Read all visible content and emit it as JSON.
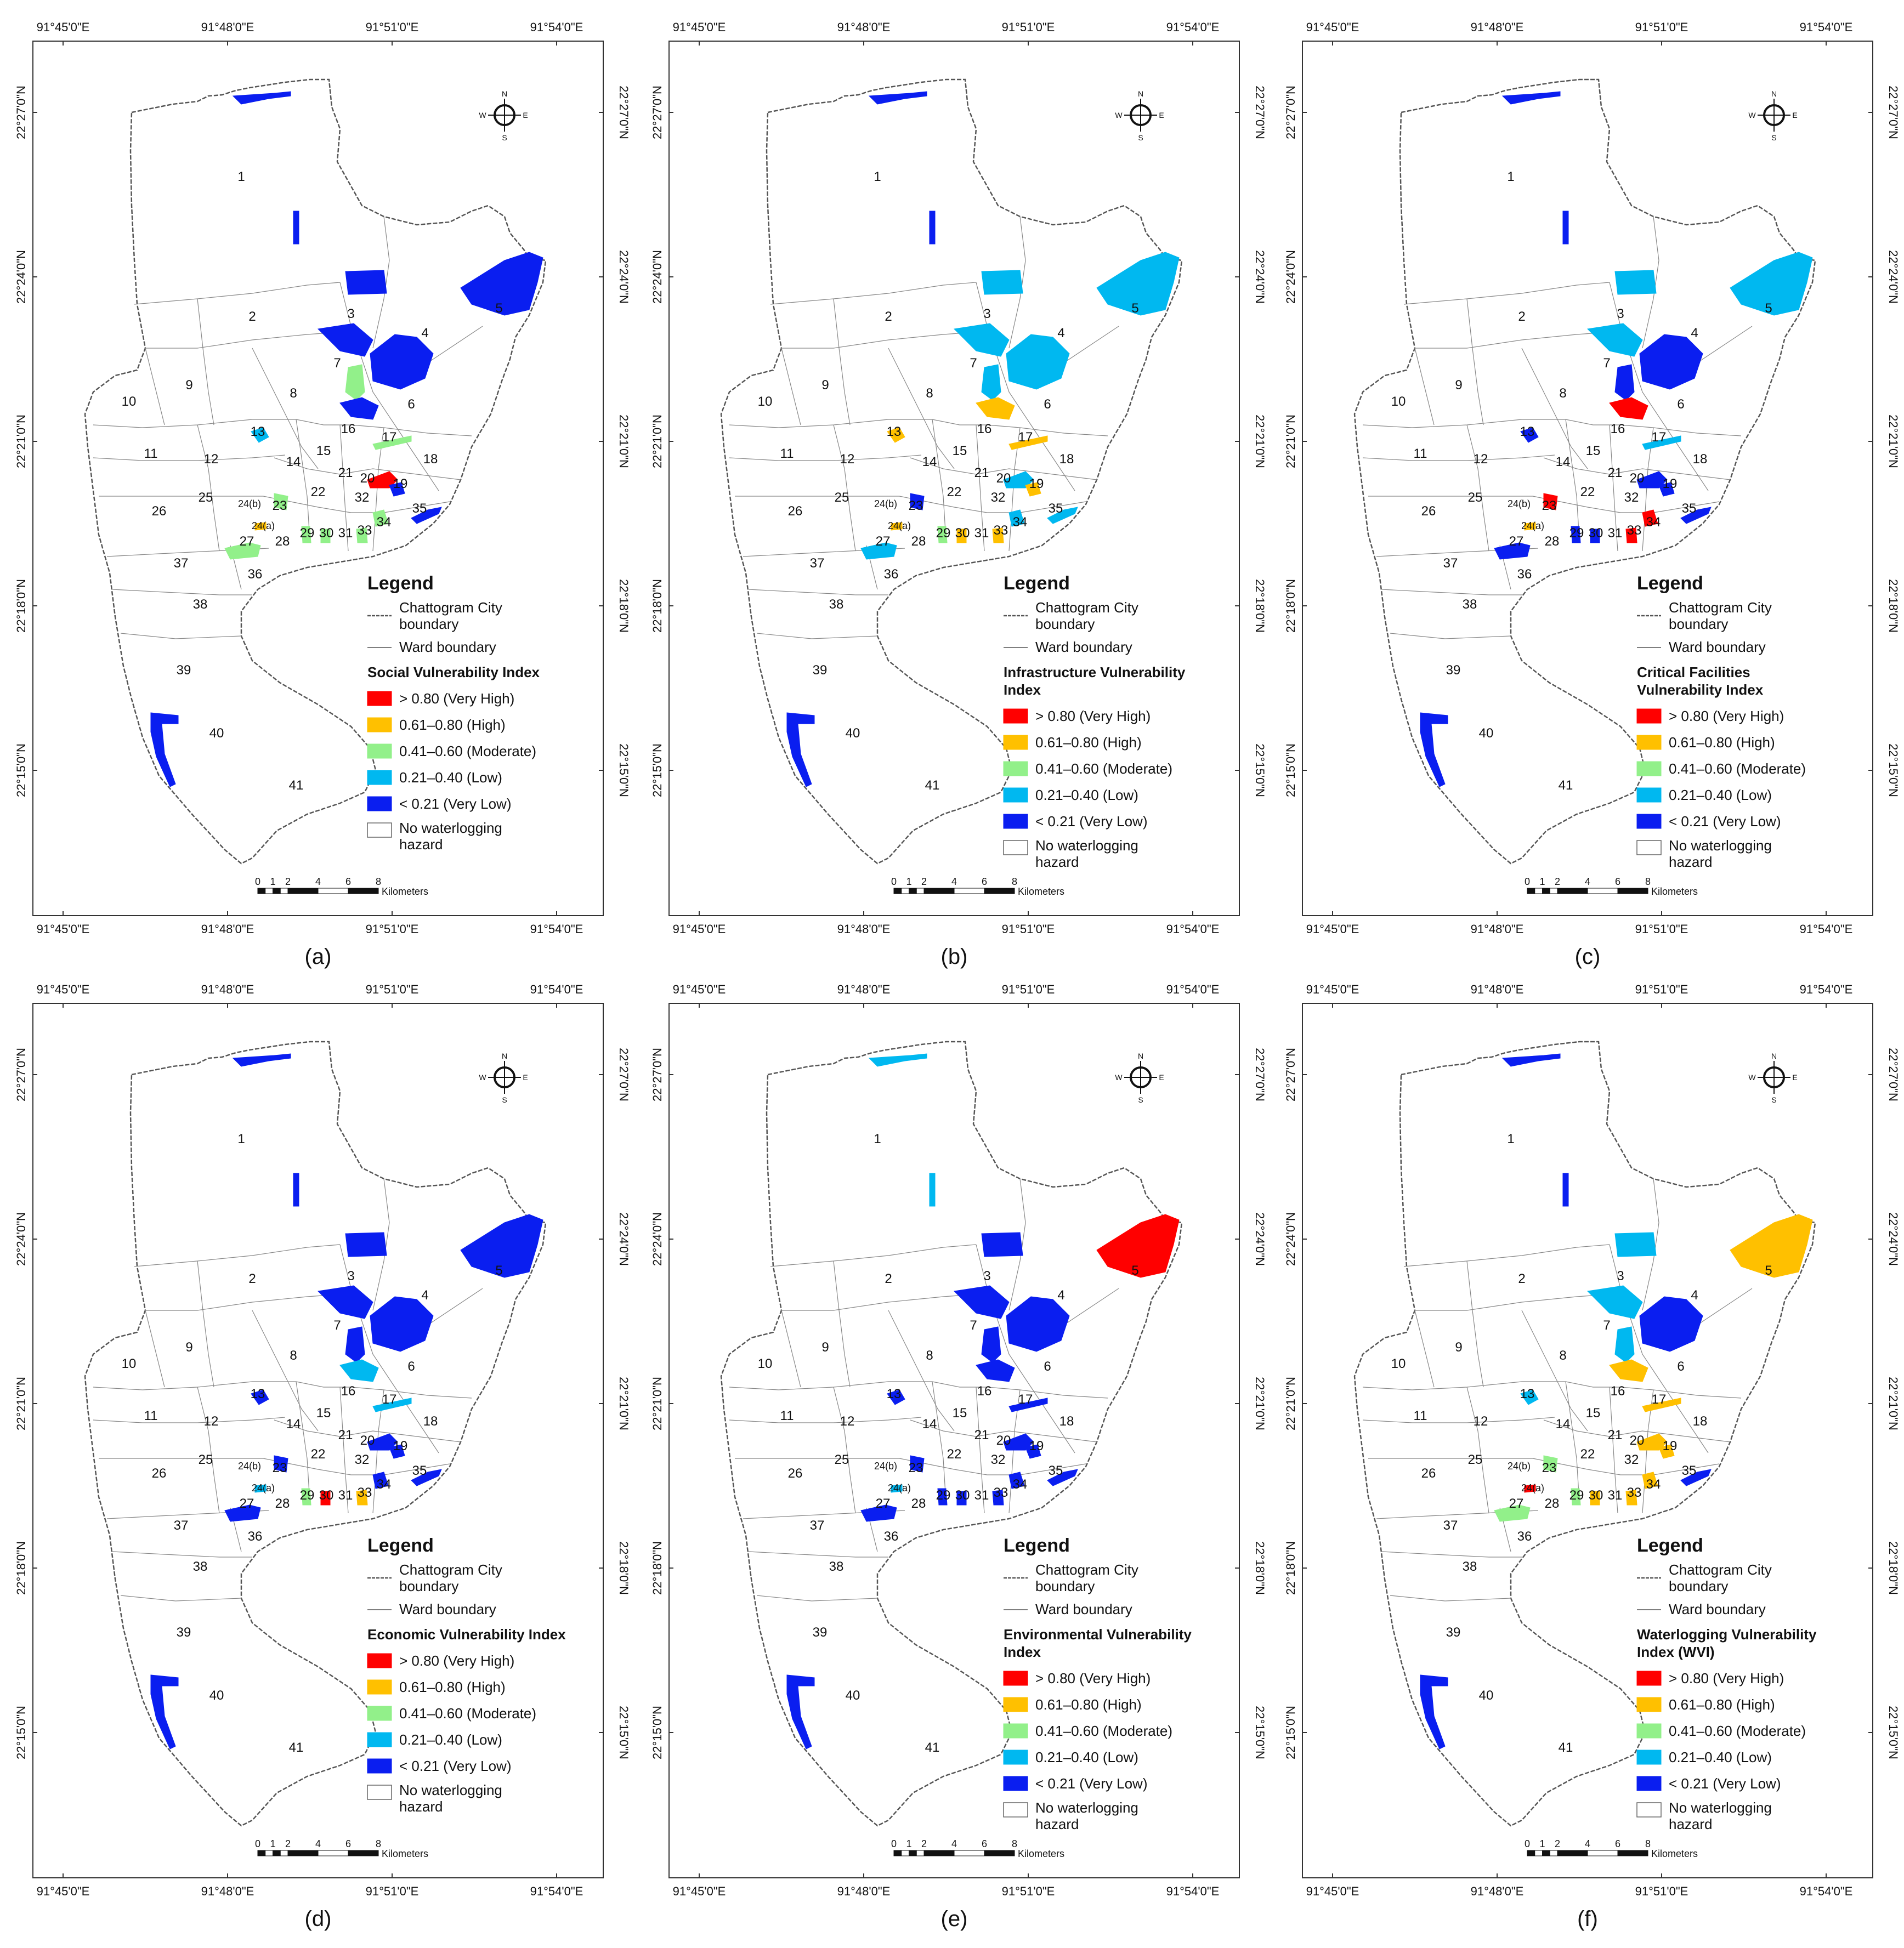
{
  "coordinates": {
    "top": [
      "91°45'0\"E",
      "91°48'0\"E",
      "91°51'0\"E",
      "91°54'0\"E"
    ],
    "bottom": [
      "91°45'0\"E",
      "91°48'0\"E",
      "91°51'0\"E",
      "91°54'0\"E"
    ],
    "left": [
      "22°27'0\"N",
      "22°24'0\"N",
      "22°21'0\"N",
      "22°18'0\"N",
      "22°15'0\"N"
    ],
    "right": [
      "22°27'0\"N",
      "22°24'0\"N",
      "22°21'0\"N",
      "22°18'0\"N",
      "22°15'0\"N"
    ]
  },
  "wards": [
    "1",
    "2",
    "3",
    "4",
    "5",
    "6",
    "7",
    "8",
    "9",
    "10",
    "11",
    "12",
    "13",
    "14",
    "15",
    "16",
    "17",
    "18",
    "19",
    "20",
    "21",
    "22",
    "23",
    "24(a)",
    "24(b)",
    "25",
    "26",
    "27",
    "28",
    "29",
    "30",
    "31",
    "32",
    "33",
    "34",
    "35",
    "36",
    "37",
    "38",
    "39",
    "40",
    "41"
  ],
  "legend": {
    "title": "Legend",
    "city_boundary": "Chattogram City boundary",
    "ward_boundary": "Ward boundary",
    "classes": [
      {
        "label": "> 0.80 (Very High)",
        "color": "#ff0000"
      },
      {
        "label": "0.61–0.80 (High)",
        "color": "#ffc000"
      },
      {
        "label": "0.41–0.60 (Moderate)",
        "color": "#92f08a"
      },
      {
        "label": "0.21–0.40 (Low)",
        "color": "#00b8f0"
      },
      {
        "label": "< 0.21 (Very Low)",
        "color": "#0a1ef0"
      }
    ],
    "no_hazard": "No waterlogging hazard"
  },
  "compass": {
    "n": "N",
    "s": "S",
    "e": "E",
    "w": "W"
  },
  "scale": {
    "ticks": [
      "0",
      "1",
      "2",
      "4",
      "6",
      "8"
    ],
    "unit": "Kilometers"
  },
  "panels": [
    {
      "label": "(a)",
      "index_title": "Social Vulnerability Index",
      "zones": {
        "z5": "#0a1ef0",
        "z3": "#0a1ef0",
        "z4": "#0a1ef0",
        "z3b": "#0a1ef0",
        "z7": "#92f08a",
        "z6": "#0a1ef0",
        "z13": "#00b8f0",
        "z17": "#92f08a",
        "z20": "#ff0000",
        "z19": "#0a1ef0",
        "z23": "#92f08a",
        "z24": "#ffc000",
        "z27": "#92f08a",
        "z29": "#92f08a",
        "z30": "#92f08a",
        "z33": "#92f08a",
        "z34": "#92f08a",
        "z35": "#0a1ef0",
        "z1a": "#0a1ef0",
        "z1b": "#0a1ef0",
        "z40": "#0a1ef0"
      }
    },
    {
      "label": "(b)",
      "index_title": "Infrastructure Vulnerability Index",
      "zones": {
        "z5": "#00b8f0",
        "z3": "#00b8f0",
        "z4": "#00b8f0",
        "z3b": "#00b8f0",
        "z7": "#00b8f0",
        "z6": "#ffc000",
        "z13": "#ffc000",
        "z17": "#ffc000",
        "z20": "#00b8f0",
        "z19": "#ffc000",
        "z23": "#0a1ef0",
        "z24": "#ffc000",
        "z27": "#00b8f0",
        "z29": "#92f08a",
        "z30": "#ffc000",
        "z33": "#ffc000",
        "z34": "#00b8f0",
        "z35": "#00b8f0",
        "z1a": "#0a1ef0",
        "z1b": "#0a1ef0",
        "z40": "#0a1ef0"
      }
    },
    {
      "label": "(c)",
      "index_title": "Critical Facilities Vulnerability Index",
      "zones": {
        "z5": "#00b8f0",
        "z3": "#00b8f0",
        "z4": "#0a1ef0",
        "z3b": "#00b8f0",
        "z7": "#0a1ef0",
        "z6": "#ff0000",
        "z13": "#0a1ef0",
        "z17": "#00b8f0",
        "z20": "#0a1ef0",
        "z19": "#0a1ef0",
        "z23": "#ff0000",
        "z24": "#ffc000",
        "z27": "#0a1ef0",
        "z29": "#0a1ef0",
        "z30": "#0a1ef0",
        "z33": "#ff0000",
        "z34": "#ff0000",
        "z35": "#0a1ef0",
        "z1a": "#0a1ef0",
        "z1b": "#0a1ef0",
        "z40": "#0a1ef0"
      }
    },
    {
      "label": "(d)",
      "index_title": "Economic Vulnerability Index",
      "zones": {
        "z5": "#0a1ef0",
        "z3": "#0a1ef0",
        "z4": "#0a1ef0",
        "z3b": "#0a1ef0",
        "z7": "#0a1ef0",
        "z6": "#00b8f0",
        "z13": "#0a1ef0",
        "z17": "#00b8f0",
        "z20": "#0a1ef0",
        "z19": "#0a1ef0",
        "z23": "#0a1ef0",
        "z24": "#00b8f0",
        "z27": "#0a1ef0",
        "z29": "#92f08a",
        "z30": "#ff0000",
        "z33": "#ffc000",
        "z34": "#0a1ef0",
        "z35": "#0a1ef0",
        "z1a": "#0a1ef0",
        "z1b": "#0a1ef0",
        "z40": "#0a1ef0"
      }
    },
    {
      "label": "(e)",
      "index_title": "Environmental Vulnerability Index",
      "zones": {
        "z5": "#ff0000",
        "z3": "#0a1ef0",
        "z4": "#0a1ef0",
        "z3b": "#0a1ef0",
        "z7": "#0a1ef0",
        "z6": "#0a1ef0",
        "z13": "#0a1ef0",
        "z17": "#0a1ef0",
        "z20": "#0a1ef0",
        "z19": "#0a1ef0",
        "z23": "#0a1ef0",
        "z24": "#00b8f0",
        "z27": "#0a1ef0",
        "z29": "#0a1ef0",
        "z30": "#0a1ef0",
        "z33": "#0a1ef0",
        "z34": "#0a1ef0",
        "z35": "#0a1ef0",
        "z1a": "#00b8f0",
        "z1b": "#00b8f0",
        "z40": "#0a1ef0"
      }
    },
    {
      "label": "(f)",
      "index_title": "Waterlogging Vulnerability Index (WVI)",
      "zones": {
        "z5": "#ffc000",
        "z3": "#00b8f0",
        "z4": "#0a1ef0",
        "z3b": "#00b8f0",
        "z7": "#00b8f0",
        "z6": "#ffc000",
        "z13": "#00b8f0",
        "z17": "#ffc000",
        "z20": "#ffc000",
        "z19": "#ffc000",
        "z23": "#92f08a",
        "z24": "#ff0000",
        "z27": "#92f08a",
        "z29": "#92f08a",
        "z30": "#ffc000",
        "z33": "#ffc000",
        "z34": "#ffc000",
        "z35": "#0a1ef0",
        "z1a": "#0a1ef0",
        "z1b": "#0a1ef0",
        "z40": "#0a1ef0"
      }
    }
  ]
}
